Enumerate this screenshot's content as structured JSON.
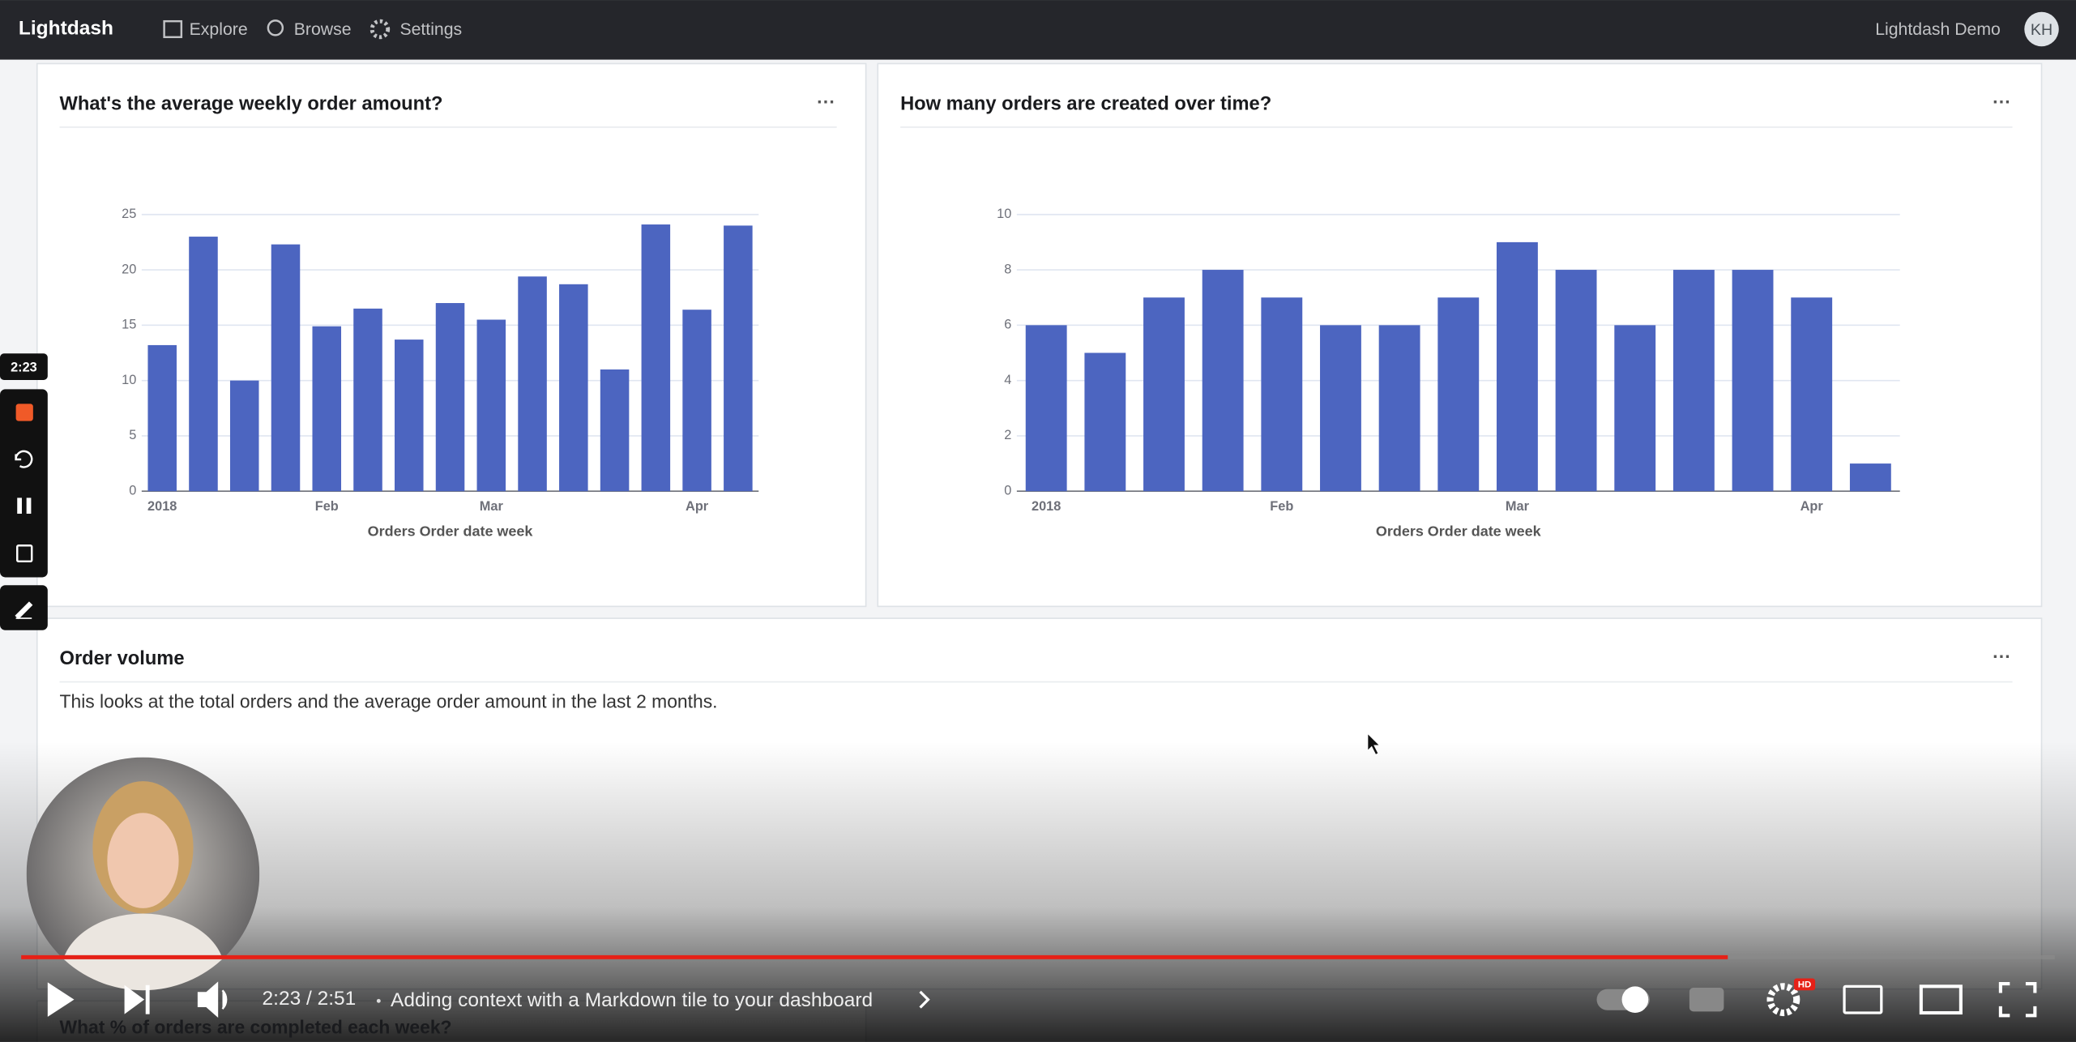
{
  "nav": {
    "brand": "Lightdash",
    "items": [
      "Explore",
      "Browse",
      "Settings"
    ],
    "org": "Lightdash Demo",
    "user": "KH"
  },
  "chart_data": [
    {
      "type": "bar",
      "title": "What's the average weekly order amount?",
      "x_label": "Orders Order date week",
      "categories": [
        "2018",
        null,
        null,
        null,
        "Feb",
        null,
        null,
        null,
        "Mar",
        null,
        null,
        null,
        null,
        "Apr",
        null
      ],
      "values": [
        13.2,
        23,
        10,
        22.3,
        14.9,
        16.5,
        13.7,
        17,
        15.5,
        19.4,
        18.7,
        11,
        24.1,
        16.4,
        24
      ],
      "color": "#4c65c0",
      "ylim": [
        0,
        25
      ],
      "yticks": [
        0,
        5,
        10,
        15,
        20,
        25
      ],
      "grid": true
    },
    {
      "type": "bar",
      "title": "How many orders are created over time?",
      "x_label": "Orders Order date week",
      "categories": [
        "2018",
        null,
        null,
        null,
        "Feb",
        null,
        null,
        null,
        "Mar",
        null,
        null,
        null,
        null,
        "Apr",
        null
      ],
      "values": [
        6,
        5,
        7,
        8,
        7,
        6,
        6,
        7,
        9,
        8,
        6,
        8,
        8,
        7,
        1
      ],
      "color": "#4c65c0",
      "ylim": [
        0,
        10
      ],
      "yticks": [
        0,
        2,
        4,
        6,
        8,
        10
      ],
      "grid": true
    }
  ],
  "markdown_tile": {
    "title": "Order volume",
    "text": "This looks at the total orders and the average order amount in the last 2 months."
  },
  "next_tile": {
    "title": "What % of orders are completed each week?"
  },
  "video": {
    "badge": "2:23",
    "time": "2:23 / 2:51",
    "title": "Adding context with a Markdown tile to your dashboard",
    "quality": "HD"
  }
}
